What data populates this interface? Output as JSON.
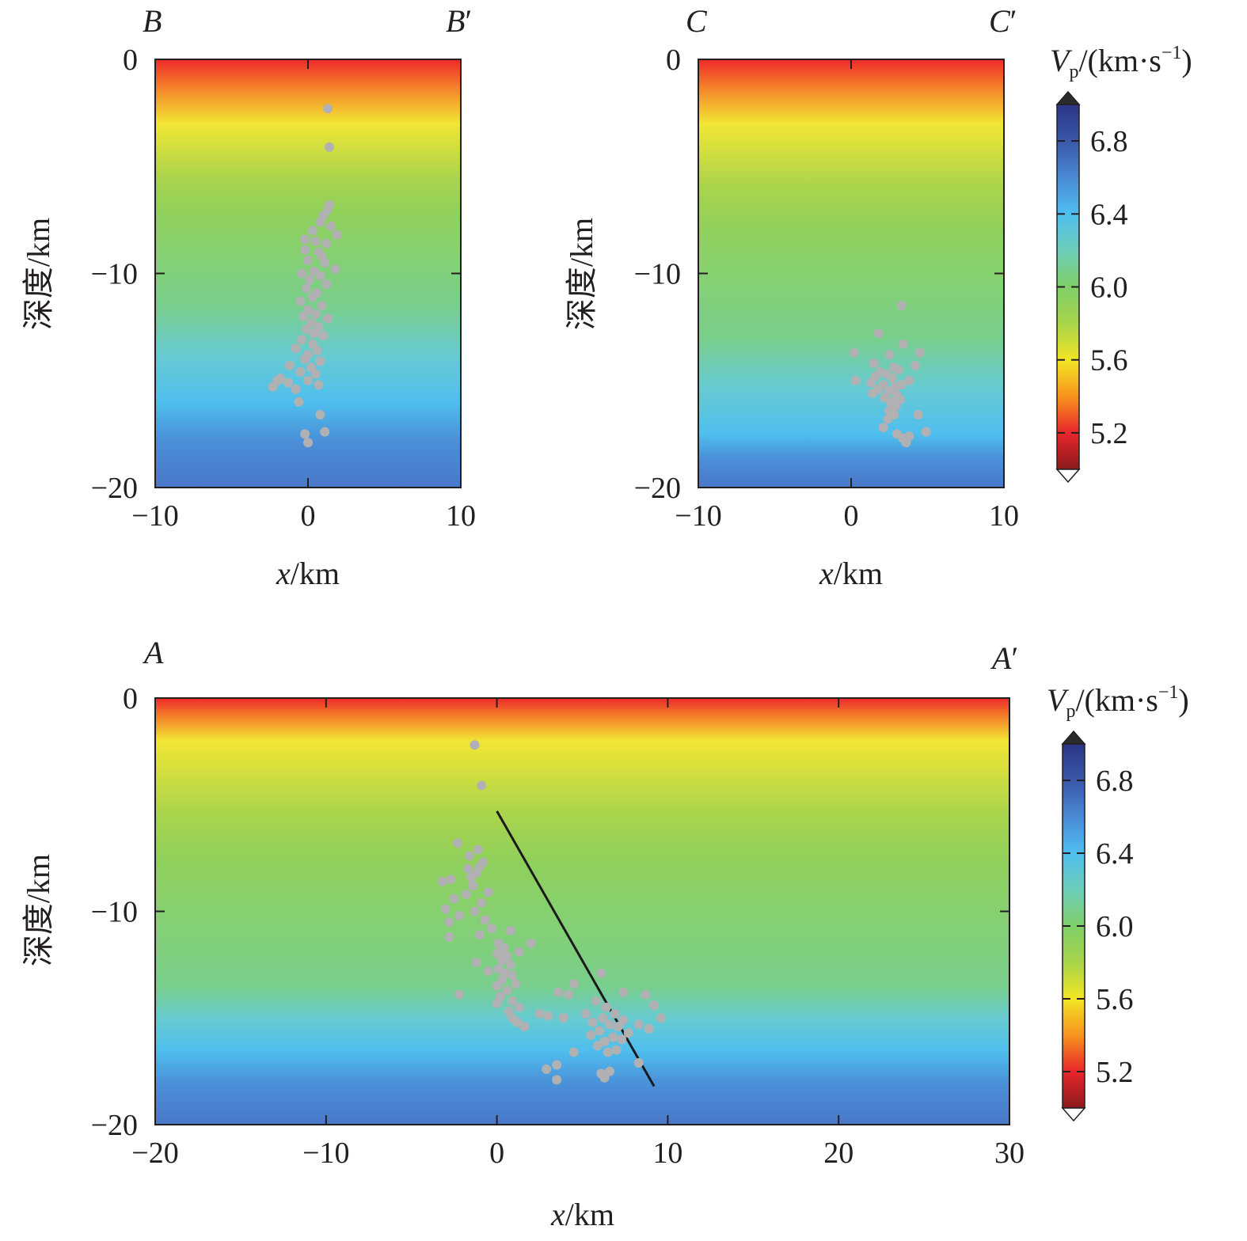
{
  "colorbar": {
    "label_symbol": "V",
    "label_sub": "p",
    "label_unit": "/(km·s",
    "label_exp": "−1",
    "label_close": ")",
    "ticks": [
      "6.8",
      "6.4",
      "6.0",
      "5.6",
      "5.2"
    ],
    "range": [
      5.0,
      7.0
    ],
    "colors": [
      "#8a1a1c",
      "#e8262b",
      "#f7931e",
      "#f2e624",
      "#a8d44a",
      "#7fcf68",
      "#6dcdb8",
      "#4ebff0",
      "#4a8ad4",
      "#3a57a8",
      "#2b3585"
    ]
  },
  "chart_data": [
    {
      "type": "scatter",
      "id": "profile-B",
      "label_left": "B",
      "label_right": "B",
      "prime": "′",
      "xlabel_var": "x",
      "xlabel_unit": "/km",
      "ylabel": "深度/km",
      "xlim": [
        -10,
        10
      ],
      "ylim": [
        -20,
        0
      ],
      "xticks": [
        "−10",
        "0",
        "10"
      ],
      "yticks": [
        "0",
        "−10",
        "−20"
      ],
      "velocity_contours": {
        "5.6_depth": -3.0,
        "6.0_depth": -11.5,
        "6.4_depth": -16.0
      },
      "points": [
        [
          1.3,
          -2.3
        ],
        [
          1.4,
          -4.1
        ],
        [
          1.4,
          -6.8
        ],
        [
          1.3,
          -7.0
        ],
        [
          1.0,
          -7.3
        ],
        [
          0.8,
          -7.6
        ],
        [
          1.5,
          -7.8
        ],
        [
          0.3,
          -8.0
        ],
        [
          1.9,
          -8.2
        ],
        [
          -0.2,
          -8.4
        ],
        [
          0.5,
          -8.5
        ],
        [
          1.2,
          -8.6
        ],
        [
          -0.2,
          -8.9
        ],
        [
          0.7,
          -9.0
        ],
        [
          0.9,
          -9.2
        ],
        [
          0.0,
          -9.4
        ],
        [
          1.1,
          -9.5
        ],
        [
          1.8,
          -9.8
        ],
        [
          0.4,
          -9.9
        ],
        [
          -0.4,
          -10.0
        ],
        [
          0.8,
          -10.1
        ],
        [
          0.1,
          -10.3
        ],
        [
          1.2,
          -10.5
        ],
        [
          -0.1,
          -10.7
        ],
        [
          0.6,
          -10.9
        ],
        [
          0.3,
          -11.1
        ],
        [
          -0.5,
          -11.3
        ],
        [
          0.9,
          -11.5
        ],
        [
          0.0,
          -11.7
        ],
        [
          0.5,
          -11.9
        ],
        [
          -0.3,
          -12.0
        ],
        [
          1.3,
          -12.1
        ],
        [
          0.2,
          -12.3
        ],
        [
          0.7,
          -12.5
        ],
        [
          -0.1,
          -12.6
        ],
        [
          0.4,
          -12.8
        ],
        [
          1.0,
          -12.9
        ],
        [
          -0.4,
          -13.1
        ],
        [
          0.3,
          -13.3
        ],
        [
          -0.8,
          -13.5
        ],
        [
          0.6,
          -13.6
        ],
        [
          0.0,
          -13.8
        ],
        [
          -0.2,
          -14.0
        ],
        [
          0.8,
          -14.1
        ],
        [
          -1.2,
          -14.3
        ],
        [
          0.2,
          -14.4
        ],
        [
          -0.5,
          -14.6
        ],
        [
          0.5,
          -14.7
        ],
        [
          -1.8,
          -14.9
        ],
        [
          0.0,
          -15.0
        ],
        [
          -1.3,
          -15.1
        ],
        [
          0.7,
          -15.2
        ],
        [
          -2.3,
          -15.3
        ],
        [
          -0.8,
          -15.4
        ],
        [
          -2.0,
          -15.0
        ],
        [
          -0.6,
          -16.0
        ],
        [
          0.8,
          -16.6
        ],
        [
          -0.2,
          -17.5
        ],
        [
          1.1,
          -17.4
        ],
        [
          0.0,
          -17.9
        ]
      ]
    },
    {
      "type": "scatter",
      "id": "profile-C",
      "label_left": "C",
      "label_right": "C",
      "prime": "′",
      "xlabel_var": "x",
      "xlabel_unit": "/km",
      "ylabel": "深度/km",
      "xlim": [
        -10,
        10
      ],
      "ylim": [
        -20,
        0
      ],
      "xticks": [
        "−10",
        "0",
        "10"
      ],
      "yticks": [
        "0",
        "−10",
        "−20"
      ],
      "velocity_contours": {
        "5.6_depth": -3.0,
        "6.0_depth": -13.0,
        "6.4_depth": -17.5
      },
      "points": [
        [
          3.3,
          -11.5
        ],
        [
          1.8,
          -12.8
        ],
        [
          3.4,
          -13.3
        ],
        [
          0.2,
          -13.7
        ],
        [
          4.5,
          -13.7
        ],
        [
          2.5,
          -13.8
        ],
        [
          1.5,
          -14.2
        ],
        [
          4.2,
          -14.3
        ],
        [
          2.8,
          -14.4
        ],
        [
          3.1,
          -14.5
        ],
        [
          1.9,
          -14.6
        ],
        [
          2.3,
          -14.7
        ],
        [
          1.6,
          -14.8
        ],
        [
          2.7,
          -14.9
        ],
        [
          0.3,
          -15.0
        ],
        [
          3.8,
          -15.0
        ],
        [
          1.3,
          -15.1
        ],
        [
          2.1,
          -15.2
        ],
        [
          2.9,
          -15.3
        ],
        [
          3.3,
          -15.2
        ],
        [
          1.8,
          -15.4
        ],
        [
          2.5,
          -15.5
        ],
        [
          1.4,
          -15.6
        ],
        [
          3.0,
          -15.7
        ],
        [
          2.2,
          -15.8
        ],
        [
          3.2,
          -15.9
        ],
        [
          2.6,
          -16.0
        ],
        [
          2.9,
          -16.2
        ],
        [
          2.5,
          -16.4
        ],
        [
          2.8,
          -16.6
        ],
        [
          4.4,
          -16.6
        ],
        [
          2.4,
          -16.8
        ],
        [
          2.1,
          -17.2
        ],
        [
          4.9,
          -17.4
        ],
        [
          3.0,
          -17.5
        ],
        [
          3.8,
          -17.6
        ],
        [
          3.4,
          -17.7
        ],
        [
          3.6,
          -17.9
        ]
      ]
    },
    {
      "type": "scatter",
      "id": "profile-A",
      "label_left": "A",
      "label_right": "A",
      "prime": "′",
      "xlabel_var": "x",
      "xlabel_unit": "/km",
      "ylabel": "深度/km",
      "xlim": [
        -20,
        30
      ],
      "ylim": [
        -20,
        0
      ],
      "xticks": [
        "−20",
        "−10",
        "0",
        "10",
        "20",
        "30"
      ],
      "yticks": [
        "0",
        "−10",
        "−20"
      ],
      "velocity_contours": {
        "5.6_depth": -2.0,
        "6.0_depth": -13.5,
        "6.4_depth": -16.5
      },
      "fault_line": [
        [
          0.0,
          -5.3
        ],
        [
          9.2,
          -18.2
        ]
      ],
      "points": [
        [
          -1.3,
          -2.2
        ],
        [
          -0.9,
          -4.1
        ],
        [
          -2.3,
          -6.8
        ],
        [
          -1.1,
          -7.1
        ],
        [
          -1.6,
          -7.4
        ],
        [
          -0.8,
          -7.7
        ],
        [
          -1.0,
          -7.9
        ],
        [
          -1.7,
          -8.0
        ],
        [
          -1.2,
          -8.2
        ],
        [
          -1.5,
          -8.4
        ],
        [
          -2.7,
          -8.5
        ],
        [
          -3.2,
          -8.6
        ],
        [
          -1.4,
          -8.8
        ],
        [
          -0.5,
          -9.1
        ],
        [
          -1.8,
          -9.2
        ],
        [
          -2.5,
          -9.4
        ],
        [
          -0.9,
          -9.6
        ],
        [
          -3.0,
          -9.9
        ],
        [
          -1.3,
          -10.0
        ],
        [
          -2.2,
          -10.2
        ],
        [
          -0.7,
          -10.4
        ],
        [
          -2.8,
          -10.5
        ],
        [
          -0.3,
          -10.8
        ],
        [
          0.8,
          -10.9
        ],
        [
          -1.0,
          -11.1
        ],
        [
          -2.8,
          -11.2
        ],
        [
          0.1,
          -11.5
        ],
        [
          0.4,
          -11.7
        ],
        [
          2.0,
          -11.5
        ],
        [
          0.2,
          -11.8
        ],
        [
          1.3,
          -11.9
        ],
        [
          0.0,
          -12.0
        ],
        [
          0.6,
          -12.1
        ],
        [
          0.3,
          -12.3
        ],
        [
          -1.2,
          -12.4
        ],
        [
          0.8,
          -12.5
        ],
        [
          0.1,
          -12.7
        ],
        [
          -0.5,
          -12.8
        ],
        [
          0.5,
          -12.9
        ],
        [
          0.9,
          -13.0
        ],
        [
          0.3,
          -13.2
        ],
        [
          1.1,
          -13.4
        ],
        [
          0.0,
          -13.5
        ],
        [
          0.6,
          -13.7
        ],
        [
          -2.2,
          -13.9
        ],
        [
          0.2,
          -14.0
        ],
        [
          0.9,
          -14.2
        ],
        [
          0.0,
          -14.3
        ],
        [
          1.3,
          -14.5
        ],
        [
          0.7,
          -14.7
        ],
        [
          2.5,
          -14.8
        ],
        [
          3.0,
          -14.9
        ],
        [
          0.9,
          -15.0
        ],
        [
          1.2,
          -15.2
        ],
        [
          1.6,
          -15.4
        ],
        [
          3.6,
          -13.8
        ],
        [
          4.2,
          -13.9
        ],
        [
          4.5,
          -13.4
        ],
        [
          3.9,
          -15.0
        ],
        [
          5.2,
          -14.8
        ],
        [
          6.1,
          -12.9
        ],
        [
          5.8,
          -14.2
        ],
        [
          6.4,
          -14.5
        ],
        [
          6.9,
          -14.8
        ],
        [
          6.2,
          -15.0
        ],
        [
          7.4,
          -15.1
        ],
        [
          5.6,
          -15.2
        ],
        [
          6.6,
          -15.3
        ],
        [
          7.1,
          -15.4
        ],
        [
          6.0,
          -15.6
        ],
        [
          7.7,
          -15.7
        ],
        [
          5.5,
          -15.8
        ],
        [
          6.8,
          -15.9
        ],
        [
          7.3,
          -16.0
        ],
        [
          6.3,
          -16.1
        ],
        [
          5.9,
          -16.3
        ],
        [
          7.0,
          -16.5
        ],
        [
          6.5,
          -16.6
        ],
        [
          8.7,
          -13.9
        ],
        [
          7.4,
          -13.8
        ],
        [
          9.2,
          -14.4
        ],
        [
          9.6,
          -15.0
        ],
        [
          8.3,
          -15.3
        ],
        [
          8.9,
          -15.5
        ],
        [
          4.5,
          -16.6
        ],
        [
          8.3,
          -17.1
        ],
        [
          3.5,
          -17.2
        ],
        [
          2.9,
          -17.4
        ],
        [
          6.1,
          -17.6
        ],
        [
          6.6,
          -17.5
        ],
        [
          6.3,
          -17.8
        ],
        [
          3.5,
          -17.9
        ]
      ]
    }
  ]
}
